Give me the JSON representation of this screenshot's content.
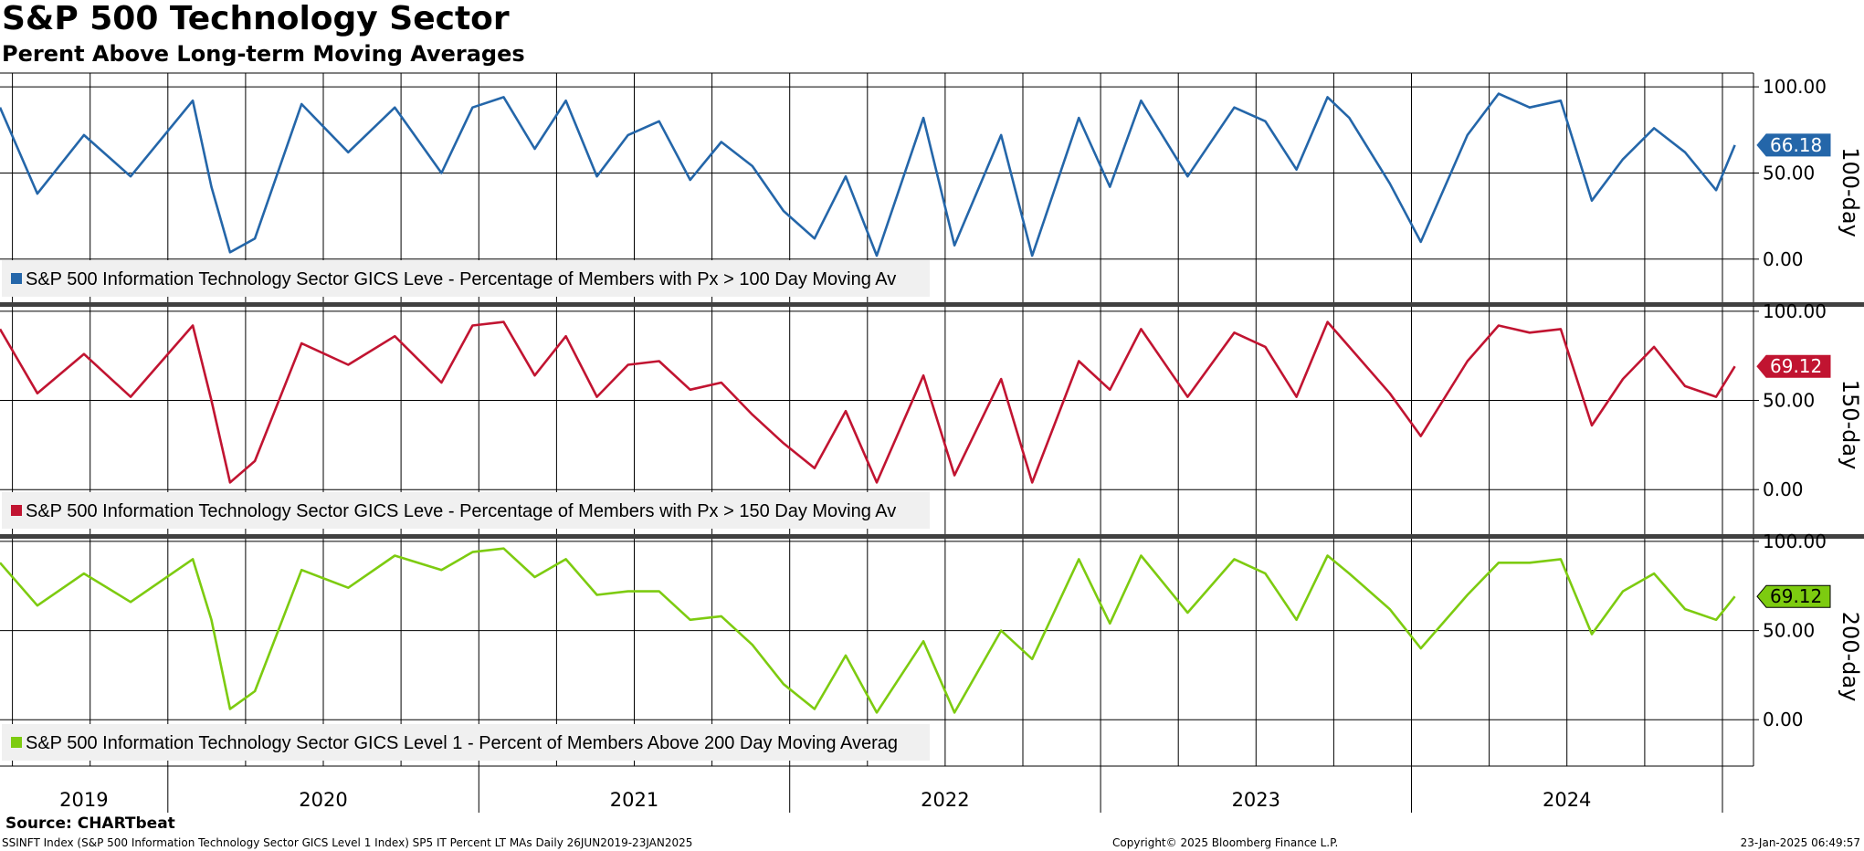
{
  "title": "S&P 500 Technology Sector",
  "subtitle": "Perent Above Long-term Moving Averages",
  "source": "Source: CHARTbeat",
  "footer": {
    "index_info": "SSINFT Index (S&P 500 Information Technology Sector GICS Level 1 Index) SP5 IT Percent LT MAs  Daily 26JUN2019-23JAN2025",
    "copyright": "Copyright© 2025 Bloomberg Finance L.P.",
    "timestamp": "23-Jan-2025 06:49:57"
  },
  "chart_data": [
    {
      "type": "line",
      "panel_label": "100-day",
      "series_name": "S&P 500 Information Technology Sector GICS Leve - Percentage of Members with Px > 100 Day Moving Av",
      "color": "#2466A9",
      "last_value_label": "66.18",
      "last_value": 66.18,
      "y_ticks": [
        "100.00",
        "50.00",
        "0.00"
      ],
      "ylim": [
        -25,
        108
      ],
      "x": [
        2019.48,
        2019.6,
        2019.75,
        2019.9,
        2020.1,
        2020.16,
        2020.22,
        2020.3,
        2020.45,
        2020.6,
        2020.75,
        2020.9,
        2021.0,
        2021.1,
        2021.2,
        2021.3,
        2021.4,
        2021.5,
        2021.6,
        2021.7,
        2021.8,
        2021.9,
        2022.0,
        2022.1,
        2022.2,
        2022.3,
        2022.45,
        2022.55,
        2022.7,
        2022.8,
        2022.95,
        2023.05,
        2023.15,
        2023.3,
        2023.45,
        2023.55,
        2023.65,
        2023.75,
        2023.82,
        2023.95,
        2024.05,
        2024.2,
        2024.3,
        2024.4,
        2024.5,
        2024.6,
        2024.7,
        2024.8,
        2024.9,
        2025.0,
        2025.06
      ],
      "values": [
        88,
        38,
        72,
        48,
        92,
        42,
        4,
        12,
        90,
        62,
        88,
        50,
        88,
        94,
        64,
        92,
        48,
        72,
        80,
        46,
        68,
        54,
        28,
        12,
        48,
        2,
        82,
        8,
        72,
        2,
        82,
        42,
        92,
        48,
        88,
        80,
        52,
        94,
        82,
        44,
        10,
        72,
        96,
        88,
        92,
        34,
        58,
        76,
        62,
        40,
        66.18
      ],
      "annotations": [
        "66.18",
        "100-day"
      ]
    },
    {
      "type": "line",
      "panel_label": "150-day",
      "series_name": "S&P 500 Information Technology Sector GICS Leve - Percentage of Members with Px > 150 Day Moving Av",
      "color": "#C11431",
      "last_value_label": "69.12",
      "last_value": 69.12,
      "y_ticks": [
        "100.00",
        "50.00",
        "0.00"
      ],
      "ylim": [
        -25,
        103
      ],
      "x": [
        2019.48,
        2019.6,
        2019.75,
        2019.9,
        2020.1,
        2020.16,
        2020.22,
        2020.3,
        2020.45,
        2020.6,
        2020.75,
        2020.9,
        2021.0,
        2021.1,
        2021.2,
        2021.3,
        2021.4,
        2021.5,
        2021.6,
        2021.7,
        2021.8,
        2021.9,
        2022.0,
        2022.1,
        2022.2,
        2022.3,
        2022.45,
        2022.55,
        2022.7,
        2022.8,
        2022.95,
        2023.05,
        2023.15,
        2023.3,
        2023.45,
        2023.55,
        2023.65,
        2023.75,
        2023.82,
        2023.95,
        2024.05,
        2024.2,
        2024.3,
        2024.4,
        2024.5,
        2024.6,
        2024.7,
        2024.8,
        2024.9,
        2025.0,
        2025.06
      ],
      "values": [
        90,
        54,
        76,
        52,
        92,
        50,
        4,
        16,
        82,
        70,
        86,
        60,
        92,
        94,
        64,
        86,
        52,
        70,
        72,
        56,
        60,
        42,
        26,
        12,
        44,
        4,
        64,
        8,
        62,
        4,
        72,
        56,
        90,
        52,
        88,
        80,
        52,
        94,
        80,
        54,
        30,
        72,
        92,
        88,
        90,
        36,
        62,
        80,
        58,
        52,
        69.12
      ],
      "annotations": [
        "69.12",
        "150-day"
      ]
    },
    {
      "type": "line",
      "panel_label": "200-day",
      "series_name": "S&P 500 Information Technology Sector GICS Level 1 - Percent of Members Above 200 Day Moving Averag",
      "color": "#7DCB10",
      "last_value_label": "69.12",
      "last_value": 69.12,
      "y_ticks": [
        "100.00",
        "50.00",
        "0.00"
      ],
      "ylim": [
        -26,
        102
      ],
      "x": [
        2019.48,
        2019.6,
        2019.75,
        2019.9,
        2020.1,
        2020.16,
        2020.22,
        2020.3,
        2020.45,
        2020.6,
        2020.75,
        2020.9,
        2021.0,
        2021.1,
        2021.2,
        2021.3,
        2021.4,
        2021.5,
        2021.6,
        2021.7,
        2021.8,
        2021.9,
        2022.0,
        2022.1,
        2022.2,
        2022.3,
        2022.45,
        2022.55,
        2022.7,
        2022.8,
        2022.95,
        2023.05,
        2023.15,
        2023.3,
        2023.45,
        2023.55,
        2023.65,
        2023.75,
        2023.82,
        2023.95,
        2024.05,
        2024.2,
        2024.3,
        2024.4,
        2024.5,
        2024.6,
        2024.7,
        2024.8,
        2024.9,
        2025.0,
        2025.06
      ],
      "values": [
        88,
        64,
        82,
        66,
        90,
        56,
        6,
        16,
        84,
        74,
        92,
        84,
        94,
        96,
        80,
        90,
        70,
        72,
        72,
        56,
        58,
        42,
        20,
        6,
        36,
        4,
        44,
        4,
        50,
        34,
        90,
        54,
        92,
        60,
        90,
        82,
        56,
        92,
        82,
        62,
        40,
        70,
        88,
        88,
        90,
        48,
        72,
        82,
        62,
        56,
        69.12
      ],
      "annotations": [
        "69.12",
        "200-day"
      ]
    }
  ],
  "x_axis": {
    "year_labels": [
      "2019",
      "2020",
      "2021",
      "2022",
      "2023",
      "2024"
    ],
    "xlim": [
      2019.48,
      2025.12
    ]
  }
}
